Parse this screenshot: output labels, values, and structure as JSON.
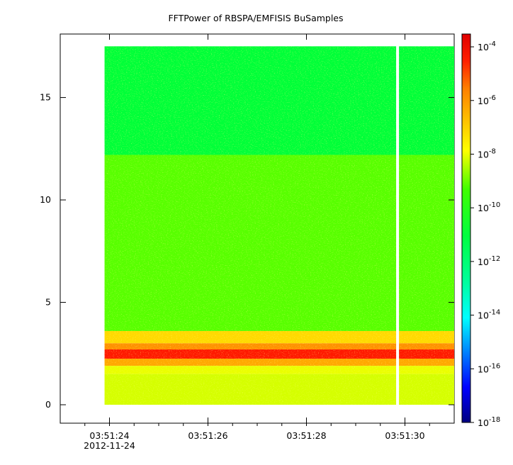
{
  "chart_data": {
    "type": "heatmap",
    "title": "FFTPower of RBSPA/EMFISIS  BuSamples",
    "xlabel": "",
    "ylabel": "",
    "x_axis": {
      "ticks": [
        {
          "value": "03:51:24",
          "label": "03:51:24",
          "sublabel": "2012-11-24"
        },
        {
          "value": "03:51:26",
          "label": "03:51:26"
        },
        {
          "value": "03:51:28",
          "label": "03:51:28"
        },
        {
          "value": "03:51:30",
          "label": "03:51:30"
        }
      ],
      "range": [
        "03:51:23.0",
        "03:51:31.0"
      ]
    },
    "y_axis": {
      "ticks": [
        0,
        5,
        10,
        15
      ],
      "range": [
        -0.9,
        18.1
      ]
    },
    "colorbar": {
      "scale": "log",
      "range": [
        1e-18,
        0.0003
      ],
      "ticks": [
        {
          "value": 0.0001,
          "mant": "10",
          "exp": "-4"
        },
        {
          "value": 1e-06,
          "mant": "10",
          "exp": "-6"
        },
        {
          "value": 1e-08,
          "mant": "10",
          "exp": "-8"
        },
        {
          "value": 1e-10,
          "mant": "10",
          "exp": "-10"
        },
        {
          "value": 1e-12,
          "mant": "10",
          "exp": "-12"
        },
        {
          "value": 1e-14,
          "mant": "10",
          "exp": "-14"
        },
        {
          "value": 1e-16,
          "mant": "10",
          "exp": "-16"
        },
        {
          "value": 1e-18,
          "mant": "10",
          "exp": "-18"
        }
      ],
      "colors": [
        "#00007f",
        "#0000ff",
        "#00bfff",
        "#00ffff",
        "#00ff7f",
        "#00ff00",
        "#7fff00",
        "#ffff00",
        "#ffbf00",
        "#ff7f00",
        "#ff0000",
        "#bf0000"
      ]
    },
    "data_extent": {
      "x_start": "03:51:23.9",
      "x_end": "03:51:31.0",
      "y_min": 0.0,
      "y_max": 17.5
    },
    "gap": {
      "time": "03:51:29.85"
    },
    "bands": [
      {
        "y_from": 12.2,
        "y_to": 17.5,
        "level": 1e-12
      },
      {
        "y_from": 3.6,
        "y_to": 12.2,
        "level": 3e-11
      },
      {
        "y_from": 3.0,
        "y_to": 3.6,
        "level": 1e-08
      },
      {
        "y_from": 2.7,
        "y_to": 3.0,
        "level": 3e-07
      },
      {
        "y_from": 2.25,
        "y_to": 2.7,
        "level": 8e-06
      },
      {
        "y_from": 1.9,
        "y_to": 2.25,
        "level": 1e-07
      },
      {
        "y_from": 1.5,
        "y_to": 1.9,
        "level": 1e-09
      },
      {
        "y_from": 0.0,
        "y_to": 1.5,
        "level": 6e-10
      }
    ]
  }
}
